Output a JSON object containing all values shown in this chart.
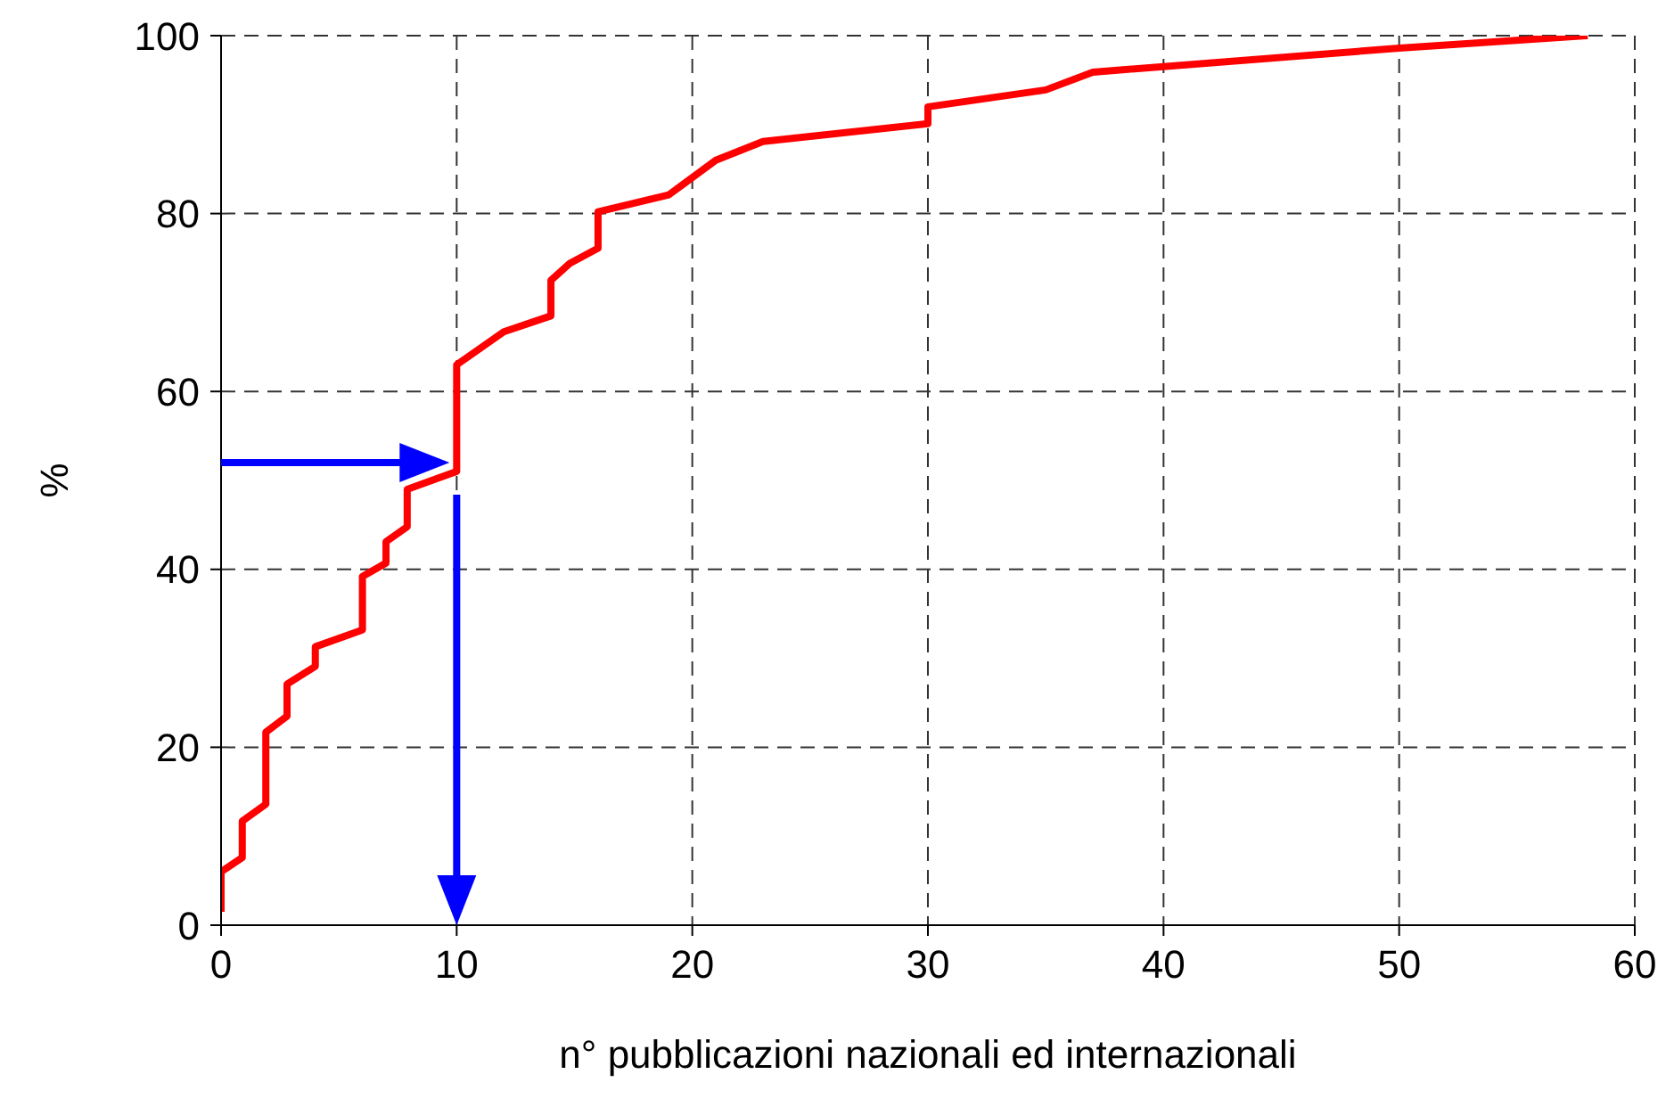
{
  "chart_data": {
    "type": "line",
    "xlabel": "n° pubblicazioni nazionali ed internazionali",
    "ylabel": "%",
    "series": [
      {
        "color": "#ff0000",
        "x": [
          0,
          0,
          0.9,
          0.9,
          1.9,
          1.9,
          2.8,
          2.8,
          4,
          4,
          6,
          6,
          7,
          7,
          7.9,
          7.9,
          10,
          10,
          12,
          14,
          14,
          14.8,
          16,
          16,
          19,
          21,
          23,
          30,
          30,
          35,
          37,
          50,
          58
        ],
        "values": [
          1.5,
          6,
          7.6,
          11.7,
          13.6,
          21.7,
          23.5,
          27.1,
          29.1,
          31.3,
          33.2,
          39.2,
          40.7,
          43.1,
          44.8,
          49,
          51,
          63,
          66.7,
          68.5,
          72.5,
          74.4,
          76.1,
          80.2,
          82.1,
          86,
          88.1,
          90.1,
          92,
          93.9,
          95.9,
          98.6,
          100
        ]
      }
    ],
    "xlim": [
      0,
      60
    ],
    "xticks": [
      0,
      10,
      20,
      30,
      40,
      50,
      60
    ],
    "ylim": [
      0,
      100
    ],
    "yticks": [
      0,
      20,
      40,
      60,
      80,
      100
    ],
    "grid": true,
    "marker": "none",
    "line_style": "solid"
  }
}
